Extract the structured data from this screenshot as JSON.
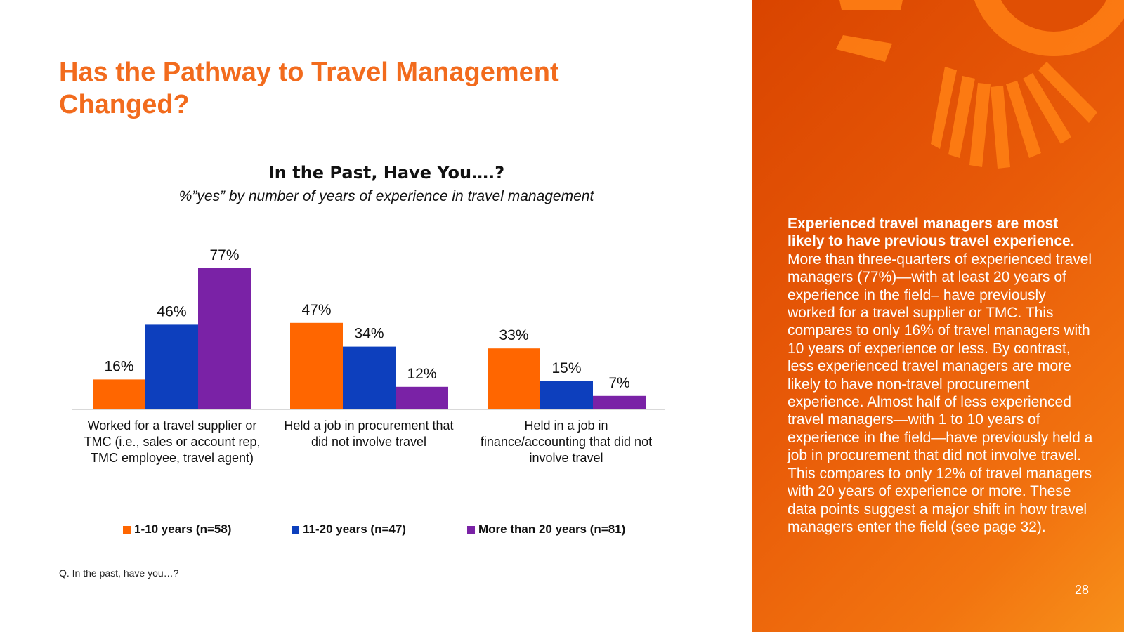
{
  "page": {
    "title": "Has the Pathway to Travel Management Changed?",
    "footnote": "Q. In the past, have you…?",
    "page_number": "28"
  },
  "panel": {
    "lead": "Experienced travel managers are most likely to have previous travel experience.",
    "body": " More than three-quarters of experienced travel managers (77%)—with at least 20 years of experience in the field– have previously worked for a travel supplier or TMC. This compares to only 16% of travel managers with 10 years of experience or less. By contrast, less experienced travel managers are more likely to have non-travel procurement experience. Almost half of less experienced travel managers—with 1 to 10 years of experience in the field—have previously held a job in procurement that did not involve travel. This compares to only 12% of travel managers with 20 years of experience or more. These data points suggest a major shift in how travel managers enter the field (see page 32)."
  },
  "chart_data": {
    "type": "bar",
    "title": "In the Past, Have You….?",
    "subtitle": "%”yes” by number of years of experience in travel management",
    "categories": [
      [
        "Worked for a travel supplier or",
        "TMC (i.e., sales or account rep,",
        "TMC employee, travel agent)"
      ],
      [
        "Held a job in procurement that",
        "did not involve travel"
      ],
      [
        "Held in a job in",
        "finance/accounting that did not",
        "involve travel"
      ]
    ],
    "series": [
      {
        "name": "1-10 years (n=58)",
        "color": "#ff6600",
        "values": [
          16,
          47,
          33
        ],
        "labels": [
          "16%",
          "47%",
          "33%"
        ]
      },
      {
        "name": "11-20 years (n=47)",
        "color": "#0d3fbd",
        "values": [
          46,
          34,
          15
        ],
        "labels": [
          "46%",
          "34%",
          "15%"
        ]
      },
      {
        "name": "More than 20 years (n=81)",
        "color": "#7a22a6",
        "values": [
          77,
          12,
          7
        ],
        "labels": [
          "77%",
          "12%",
          "7%"
        ]
      }
    ],
    "ylim": [
      0,
      100
    ],
    "grid": false,
    "legend": "bottom"
  }
}
